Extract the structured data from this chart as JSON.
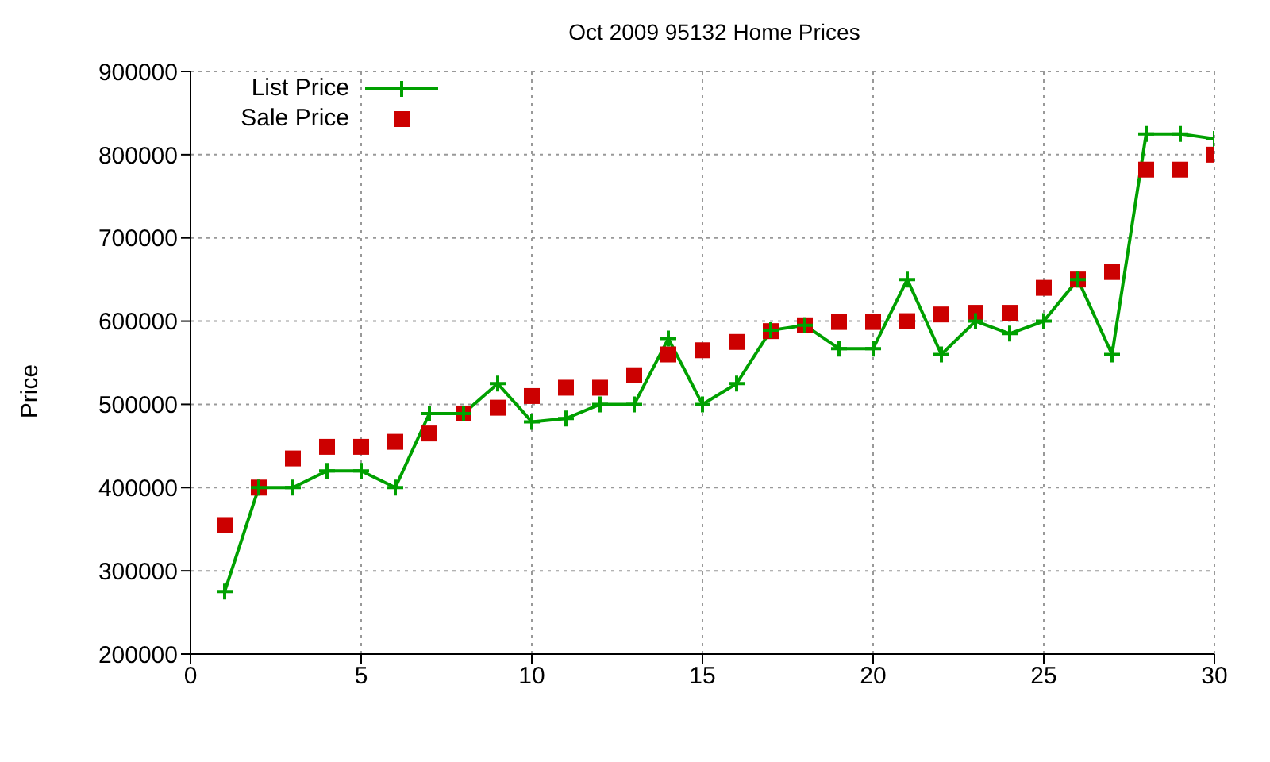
{
  "chart_data": {
    "type": "line",
    "title": "Oct 2009 95132 Home Prices",
    "ylabel": "Price",
    "x": [
      1,
      2,
      3,
      4,
      5,
      6,
      7,
      8,
      9,
      10,
      11,
      12,
      13,
      14,
      15,
      16,
      17,
      18,
      19,
      20,
      21,
      22,
      23,
      24,
      25,
      26,
      27,
      28,
      29,
      30
    ],
    "series": [
      {
        "name": "List Price",
        "marker": "cross",
        "color": "#00a000",
        "values": [
          275000,
          400000,
          400000,
          420000,
          420000,
          400000,
          489000,
          489000,
          525000,
          479000,
          483000,
          500000,
          500000,
          579000,
          500000,
          525000,
          589000,
          595000,
          567000,
          567000,
          650000,
          560000,
          600000,
          585000,
          600000,
          650000,
          560000,
          825000,
          825000,
          819000
        ]
      },
      {
        "name": "Sale Price",
        "type": "scatter",
        "marker": "square",
        "color": "#cc0000",
        "values": [
          355000,
          400000,
          435000,
          449000,
          449000,
          455000,
          465000,
          489000,
          496000,
          510000,
          520000,
          520000,
          535000,
          560000,
          565000,
          575000,
          588000,
          595000,
          599000,
          599000,
          600000,
          608000,
          610000,
          610000,
          640000,
          650000,
          659000,
          782000,
          782000,
          800000
        ]
      }
    ],
    "xlim": [
      0,
      30
    ],
    "xticks": [
      0,
      5,
      10,
      15,
      20,
      25,
      30
    ],
    "ylim": [
      200000,
      900000
    ],
    "yticks": [
      200000,
      300000,
      400000,
      500000,
      600000,
      700000,
      800000,
      900000
    ],
    "grid": true,
    "legend": "top left"
  }
}
